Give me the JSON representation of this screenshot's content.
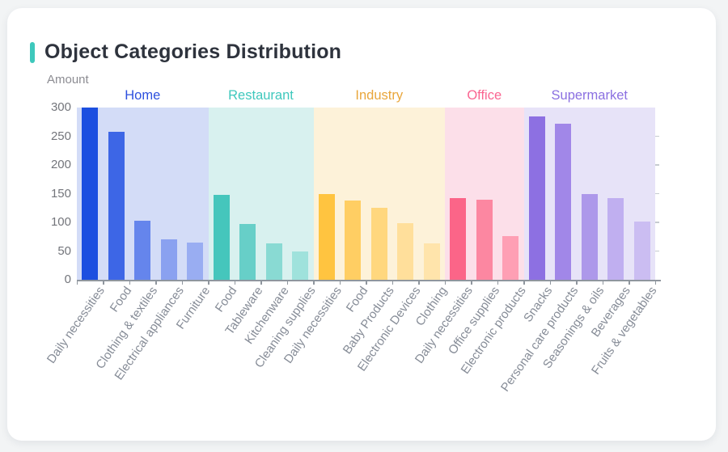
{
  "header": {
    "title": "Object Categories Distribution",
    "accent_color": "#3ec8bc"
  },
  "chart_data": {
    "type": "bar",
    "title": "Object Categories Distribution",
    "xlabel": "",
    "ylabel": "Amount",
    "ylim": [
      0,
      300
    ],
    "yticks": [
      0,
      50,
      100,
      150,
      200,
      250,
      300
    ],
    "grid": false,
    "legend_position": "top-inside",
    "groups": [
      {
        "name": "Home",
        "label_color": "#2d50de",
        "band_color": "#d3dcf7",
        "bar_colors": [
          "#1c4fe0",
          "#3d66e6",
          "#6585ec",
          "#8aa1f0",
          "#99adf2"
        ],
        "categories": [
          "Daily necessities",
          "Food",
          "Clothing & textiles",
          "Electrical appliances",
          "Furniture"
        ],
        "values": [
          300,
          258,
          103,
          70,
          65
        ]
      },
      {
        "name": "Restaurant",
        "label_color": "#3fc8bd",
        "band_color": "#d8f1ef",
        "bar_colors": [
          "#45c6bc",
          "#67cfc8",
          "#89dad3",
          "#9fe2dc"
        ],
        "categories": [
          "Food",
          "Tableware",
          "Kitchenware",
          "Cleaning supplies"
        ],
        "values": [
          148,
          97,
          64,
          50
        ]
      },
      {
        "name": "Industry",
        "label_color": "#e9a63b",
        "band_color": "#fdf2d9",
        "bar_colors": [
          "#ffc440",
          "#ffce63",
          "#ffd77e",
          "#ffdf9b",
          "#ffe4ab"
        ],
        "categories": [
          "Daily necessities",
          "Food",
          "Baby Products",
          "Electronic Devices",
          "Clothing"
        ],
        "values": [
          150,
          138,
          126,
          99,
          64
        ]
      },
      {
        "name": "Office",
        "label_color": "#fa6591",
        "band_color": "#fcdfe9",
        "bar_colors": [
          "#fb6588",
          "#fc87a1",
          "#fe9fb4"
        ],
        "categories": [
          "Daily necessities",
          "Office supplies",
          "Electronic products"
        ],
        "values": [
          143,
          139,
          76
        ]
      },
      {
        "name": "Supermarket",
        "label_color": "#8b70e1",
        "band_color": "#e7e3f8",
        "bar_colors": [
          "#8d70e2",
          "#a187e8",
          "#ad98ea",
          "#c0aff0",
          "#cbbdf2"
        ],
        "categories": [
          "Snacks",
          "Personal care products",
          "Seasonings & oils",
          "Beverages",
          "Fruits & vegetables"
        ],
        "values": [
          285,
          272,
          149,
          142,
          102
        ]
      }
    ]
  }
}
